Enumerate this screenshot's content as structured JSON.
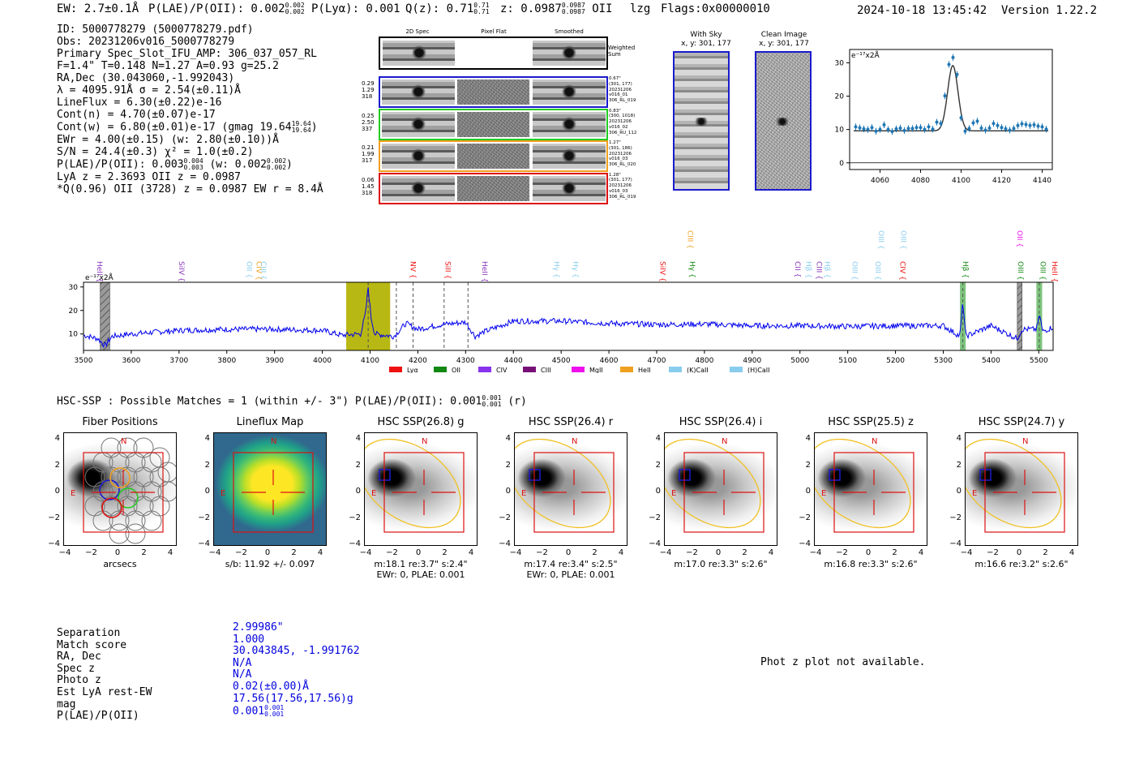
{
  "header": {
    "ew": "EW: 2.7±0.1Å",
    "plae_label": "P(LAE)/P(OII): 0.002",
    "plae_hi": "0.002",
    "plae_lo": "0.002",
    "plya": "P(Lyα): 0.001",
    "qz_label": "Q(z): 0.71",
    "qz_hi": "0.71",
    "qz_lo": "0.71",
    "z_label": "z: 0.0987",
    "z_hi": "0.0987",
    "z_lo": "0.0987",
    "z_line": "OII",
    "flag_lzg": "lzg",
    "flags": "Flags:0x00000010",
    "timestamp": "2024-10-18 13:45:42",
    "version": "Version 1.22.2"
  },
  "info": {
    "id": "ID: 5000778279 (5000778279.pdf)",
    "obs": "Obs: 20231206v016_5000778279",
    "primary": "Primary Spec_Slot_IFU_AMP: 306_037_057_RL",
    "fit": "F=1.4\"  T=0.148  N=1.27  A=0.93  g=25.2",
    "radec": "RA,Dec (30.043060,-1.992043)",
    "lambda": "λ = 4095.91Å  σ = 2.54(±0.11)Å",
    "lineflux": "LineFlux = 6.30(±0.22)e-16",
    "contn": "Cont(n) = 4.70(±0.07)e-17",
    "contw": "Cont(w) = 6.80(±0.01)e-17 (gmag 19.64",
    "contw_hi": "19.64",
    "contw_lo": "19.64",
    "ewr": "EWr = 4.00(±0.15) (w: 2.80(±0.10))Å",
    "sn": "S/N = 24.4(±0.3)  χ² = 1.0(±0.2)",
    "plae": "P(LAE)/P(OII): 0.003",
    "plae_hi": "0.004",
    "plae_lo": "0.003",
    "plae_w": "(w: 0.002",
    "plae_w_hi": "0.002",
    "plae_w_lo": "0.002",
    "lya_z": "LyA z = 2.3693  OII z = 0.0987",
    "q_line": "*Q(0.96) OII (3728) z = 0.0987  EW r = 8.4Å"
  },
  "cutouts": {
    "col_2d": "2D Spec",
    "col_flat": "Pixel Flat",
    "col_smooth": "Smoothed",
    "weighted": "Weighted Sum",
    "rows": [
      {
        "left": [
          "0.29",
          "1.29",
          "318"
        ],
        "right": [
          "0.67\"",
          "(301, 177)",
          "20231206",
          "v016_01",
          "306_RL_019"
        ],
        "color": "#1a1acc"
      },
      {
        "left": [
          "0.25",
          "2.50",
          "337"
        ],
        "right": [
          "0.83\"",
          "(300, 1018)",
          "20231206",
          "v016_02",
          "306_RU_112"
        ],
        "color": "#22cc22"
      },
      {
        "left": [
          "0.21",
          "1.99",
          "317"
        ],
        "right": [
          "1.27\"",
          "(301, 186)",
          "20231206",
          "v016_03",
          "306_RL_020"
        ],
        "color": "#f0a020"
      },
      {
        "left": [
          "0.06",
          "1.45",
          "318"
        ],
        "right": [
          "1.28\"",
          "(301, 177)",
          "20231206",
          "v016_03",
          "306_RL_019"
        ],
        "color": "#dd1111"
      }
    ]
  },
  "sky": {
    "with_sky": "With Sky",
    "with_sky_xy": "x, y: 301, 177",
    "clean": "Clean Image",
    "clean_xy": "x, y: 301, 177"
  },
  "hsc": {
    "line": "HSC-SSP : Possible Matches = 1 (within +/- 3\")  P(LAE)/P(OII): 0.001",
    "hi": "0.001",
    "lo": "0.001",
    "band": "(r)"
  },
  "panels": [
    {
      "title": "Fiber Positions",
      "cap1": "arcsecs",
      "cap2": ""
    },
    {
      "title": "Lineflux Map",
      "cap1": "s/b: 11.92 +/- 0.097",
      "cap2": ""
    },
    {
      "title": "HSC SSP(26.8) g",
      "cap1": "m:18.1  re:3.7\"  s:2.4\"",
      "cap2": "EWr: 0, PLAE: 0.001"
    },
    {
      "title": "HSC SSP(26.4) r",
      "cap1": "m:17.4  re:3.4\"  s:2.5\"",
      "cap2": "EWr: 0, PLAE: 0.001"
    },
    {
      "title": "HSC SSP(26.4) i",
      "cap1": "m:17.0  re:3.3\"  s:2.6\"",
      "cap2": ""
    },
    {
      "title": "HSC SSP(25.5) z",
      "cap1": "m:16.8  re:3.3\"  s:2.6\"",
      "cap2": ""
    },
    {
      "title": "HSC SSP(24.7) y",
      "cap1": "m:16.6  re:3.2\"  s:2.6\"",
      "cap2": ""
    }
  ],
  "panel_axis": {
    "ticks": [
      "4",
      "2",
      "0",
      "−2",
      "−4"
    ],
    "xticks": [
      "−4",
      "−2",
      "0",
      "2",
      "4"
    ],
    "north": "N",
    "east": "E"
  },
  "separation": {
    "keys": [
      "Separation",
      "Match score",
      "RA, Dec",
      "Spec z",
      "Photo z",
      "Est LyA rest-EW",
      "mag",
      "P(LAE)/P(OII)"
    ],
    "vals": [
      "2.99986\"",
      "1.000",
      "30.043845, -1.991762",
      "N/A",
      "N/A",
      "0.02(±0.00)Å",
      "17.56(17.56,17.56)g",
      "0.001"
    ],
    "plae_hi": "0.001",
    "plae_lo": "0.001"
  },
  "photz": "Phot z plot not available.",
  "legend": [
    {
      "label": "Lyα",
      "color": "#ee1111"
    },
    {
      "label": "OII",
      "color": "#118811"
    },
    {
      "label": "CIV",
      "color": "#8833ee"
    },
    {
      "label": "CIII",
      "color": "#771177"
    },
    {
      "label": "MgII",
      "color": "#ee11ee"
    },
    {
      "label": "HeII",
      "color": "#f0a020"
    },
    {
      "label": "(K)CaII",
      "color": "#88ccee"
    },
    {
      "label": "(H)CaII",
      "color": "#88ccee"
    }
  ],
  "line_labels": [
    {
      "label": "HeII",
      "w": 3529,
      "color": "#8833bb",
      "row": 0
    },
    {
      "label": "SiIV",
      "w": 3700,
      "color": "#8833bb",
      "row": 0
    },
    {
      "label": "OII",
      "w": 3842,
      "color": "#88ccee",
      "row": 0
    },
    {
      "label": "CIV",
      "w": 3862,
      "color": "#f0a020",
      "row": 0
    },
    {
      "label": "CIII",
      "w": 3872,
      "color": "#88ccee",
      "row": 0
    },
    {
      "label": "NV",
      "w": 4185,
      "color": "#ee1111",
      "row": 0
    },
    {
      "label": "SiII",
      "w": 4258,
      "color": "#ee1111",
      "row": 0
    },
    {
      "label": "HeII",
      "w": 4335,
      "color": "#8833bb",
      "row": 0
    },
    {
      "label": "Hγ",
      "w": 4485,
      "color": "#88ccee",
      "row": 0
    },
    {
      "label": "Hγ",
      "w": 4525,
      "color": "#88ccee",
      "row": 0
    },
    {
      "label": "SiIV",
      "w": 4708,
      "color": "#ee1111",
      "row": 0
    },
    {
      "label": "CIII",
      "w": 4765,
      "color": "#f0a020",
      "row": 1
    },
    {
      "label": "Hγ",
      "w": 4770,
      "color": "#118811",
      "row": 0
    },
    {
      "label": "CII",
      "w": 4990,
      "color": "#8833bb",
      "row": 0
    },
    {
      "label": "Hβ",
      "w": 5013,
      "color": "#88ccee",
      "row": 0
    },
    {
      "label": "CIII",
      "w": 5035,
      "color": "#8833bb",
      "row": 0
    },
    {
      "label": "Hβ",
      "w": 5052,
      "color": "#88ccee",
      "row": 0
    },
    {
      "label": "OIII",
      "w": 5110,
      "color": "#88ccee",
      "row": 0
    },
    {
      "label": "OIII",
      "w": 5158,
      "color": "#88ccee",
      "row": 0
    },
    {
      "label": "OIII",
      "w": 5165,
      "color": "#88ccee",
      "row": 1
    },
    {
      "label": "CIV",
      "w": 5210,
      "color": "#ee1111",
      "row": 0
    },
    {
      "label": "OIII",
      "w": 5212,
      "color": "#88ccee",
      "row": 1
    },
    {
      "label": "Hβ",
      "w": 5342,
      "color": "#118811",
      "row": 0
    },
    {
      "label": "OII",
      "w": 5455,
      "color": "#ee11ee",
      "row": 1
    },
    {
      "label": "OIII",
      "w": 5457,
      "color": "#118811",
      "row": 0
    },
    {
      "label": "OIII",
      "w": 5504,
      "color": "#118811",
      "row": 0
    },
    {
      "label": "HeII",
      "w": 5528,
      "color": "#ee1111",
      "row": 0
    }
  ],
  "chart_data": [
    {
      "type": "scatter",
      "title": "",
      "unit_label": "e⁻¹⁷x2Å",
      "xlim": [
        4045,
        4145
      ],
      "ylim": [
        -2,
        34
      ],
      "xticks": [
        4060,
        4080,
        4100,
        4120,
        4140
      ],
      "yticks": [
        0,
        10,
        20,
        30
      ],
      "points": {
        "x": [
          4048,
          4050,
          4052,
          4054,
          4056,
          4058,
          4060,
          4062,
          4064,
          4066,
          4068,
          4070,
          4072,
          4074,
          4076,
          4078,
          4080,
          4082,
          4084,
          4086,
          4088,
          4090,
          4092,
          4094,
          4096,
          4098,
          4100,
          4102,
          4104,
          4106,
          4108,
          4110,
          4112,
          4114,
          4116,
          4118,
          4120,
          4122,
          4124,
          4126,
          4128,
          4130,
          4132,
          4134,
          4136,
          4138,
          4140,
          4142
        ],
        "y": [
          10.8,
          10.5,
          10.2,
          10.0,
          10.6,
          9.5,
          10.0,
          11.4,
          10.0,
          9.4,
          10.2,
          10.4,
          9.7,
          10.3,
          10.3,
          10.6,
          10.6,
          10.0,
          10.8,
          10.1,
          12.2,
          11.8,
          20.1,
          29.5,
          31.6,
          26.5,
          13.5,
          9.5,
          10.3,
          12.0,
          12.5,
          10.4,
          9.8,
          10.4,
          11.8,
          11.2,
          10.6,
          10.2,
          9.8,
          10.3,
          11.2,
          11.7,
          11.5,
          11.2,
          11.4,
          11.0,
          10.8,
          10.1
        ]
      },
      "model": {
        "center": 4095.9,
        "sigma": 2.54,
        "amplitude": 19.6,
        "continuum": 9.6
      }
    },
    {
      "type": "line",
      "title": "",
      "unit_label": "e⁻¹⁷x2Å",
      "xlim": [
        3500,
        5530
      ],
      "ylim": [
        3,
        32
      ],
      "xticks": [
        3500,
        3600,
        3700,
        3800,
        3900,
        4000,
        4100,
        4200,
        4300,
        4400,
        4500,
        4600,
        4700,
        4800,
        4900,
        5000,
        5100,
        5200,
        5300,
        5400,
        5500
      ],
      "yticks": [
        10,
        20,
        30
      ],
      "anchors": {
        "x": [
          3500,
          3530,
          3545,
          3560,
          3600,
          3700,
          3800,
          3900,
          4000,
          4040,
          4080,
          4090,
          4096,
          4102,
          4110,
          4150,
          4175,
          4200,
          4250,
          4300,
          4320,
          4340,
          4400,
          4500,
          4600,
          4700,
          4800,
          4900,
          5000,
          5100,
          5200,
          5300,
          5335,
          5341,
          5347,
          5400,
          5455,
          5465,
          5495,
          5502,
          5508,
          5530
        ],
        "y": [
          9.5,
          8,
          5,
          9,
          10,
          11.5,
          12,
          12,
          11.5,
          9.5,
          10,
          18,
          30,
          17,
          10,
          9,
          14.5,
          12,
          14,
          15,
          9,
          11,
          15.5,
          15.5,
          14.5,
          14,
          14.2,
          13.5,
          13.5,
          13.2,
          13.5,
          13.5,
          9,
          24,
          9,
          13.5,
          8,
          12,
          12,
          18,
          11,
          13
        ]
      },
      "shaded_regions": [
        {
          "range": [
            3535,
            3555
          ],
          "style": "hatch"
        },
        {
          "range": [
            4050,
            4142
          ],
          "style": "olive"
        },
        {
          "range": [
            5335,
            5347
          ],
          "style": "green"
        },
        {
          "range": [
            5455,
            5465
          ],
          "style": "hatch"
        },
        {
          "range": [
            5495,
            5507
          ],
          "style": "green"
        }
      ],
      "dashed_lines": [
        4096,
        4155,
        4190,
        4255,
        4305,
        5341,
        5501
      ]
    }
  ]
}
